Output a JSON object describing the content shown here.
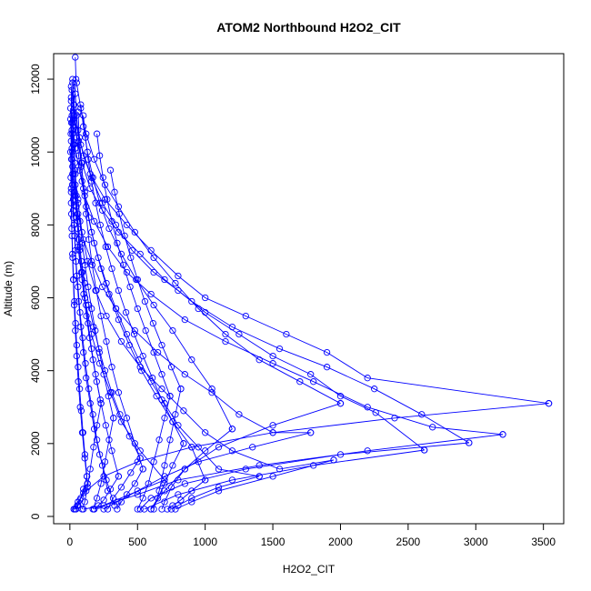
{
  "chart_data": {
    "type": "line",
    "title": "ATOM2 Northbound H2O2_CIT",
    "xlabel": "H2O2_CIT",
    "ylabel": "Altitude (m)",
    "xlim": [
      -120,
      3650
    ],
    "ylim": [
      -200,
      12700
    ],
    "x_ticks": [
      0,
      500,
      1000,
      1500,
      2000,
      2500,
      3000,
      3500
    ],
    "y_ticks": [
      0,
      2000,
      4000,
      6000,
      8000,
      10000,
      12000
    ],
    "x_tick_labels": [
      "0",
      "500",
      "1000",
      "1500",
      "2000",
      "2500",
      "3000",
      "3500"
    ],
    "y_tick_labels": [
      "0",
      "2000",
      "4000",
      "6000",
      "8000",
      "10000",
      "12000"
    ],
    "grid": false,
    "legend": "none",
    "series_color": "#0000ff",
    "marker": "open-circle",
    "series": [
      {
        "x": [
          40,
          45,
          30,
          20,
          15,
          10,
          25,
          60,
          90,
          120,
          160,
          220,
          300,
          380,
          520,
          700,
          180
        ],
        "y": [
          12600,
          12000,
          11300,
          10500,
          9800,
          9000,
          8200,
          7400,
          6500,
          5800,
          5000,
          4200,
          3400,
          2600,
          1800,
          1000,
          200
        ]
      },
      {
        "x": [
          20,
          30,
          80,
          150,
          260,
          420,
          600,
          800,
          1000,
          1300,
          1600,
          1900,
          2200,
          3540
        ],
        "y": [
          11900,
          11000,
          10200,
          9400,
          8700,
          8000,
          7300,
          6600,
          6000,
          5500,
          5000,
          4500,
          3800,
          3100
        ]
      },
      {
        "x": [
          3540,
          2400,
          1500,
          900,
          500,
          250,
          120,
          60,
          30
        ],
        "y": [
          3100,
          2700,
          2300,
          1900,
          1500,
          1100,
          700,
          400,
          200
        ]
      },
      {
        "x": [
          10,
          20,
          40,
          70,
          110,
          180,
          280,
          420,
          600,
          850,
          1150,
          1500,
          1800,
          2200,
          2680,
          3200
        ],
        "y": [
          11400,
          10800,
          10100,
          9500,
          8800,
          8100,
          7400,
          6700,
          6100,
          5400,
          4800,
          4200,
          3700,
          3000,
          2450,
          2250
        ]
      },
      {
        "x": [
          3200,
          2200,
          1400,
          800,
          500,
          250,
          100
        ],
        "y": [
          2250,
          1800,
          1400,
          1000,
          600,
          300,
          200
        ]
      },
      {
        "x": [
          15,
          25,
          50,
          90,
          150,
          240,
          360,
          520,
          700,
          900,
          1200,
          1550,
          1900,
          2250,
          2600,
          2950
        ],
        "y": [
          11700,
          11100,
          10400,
          9700,
          9000,
          8400,
          7800,
          7200,
          6500,
          5900,
          5200,
          4600,
          4100,
          3500,
          2800,
          2020
        ]
      },
      {
        "x": [
          2950,
          2000,
          1300,
          850,
          600,
          520
        ],
        "y": [
          2020,
          1700,
          1300,
          900,
          500,
          200
        ]
      },
      {
        "x": [
          30,
          60,
          100,
          160,
          240,
          340,
          460,
          620,
          800,
          1000,
          1250,
          1500,
          1780,
          2000,
          2260,
          2620
        ],
        "y": [
          11300,
          10600,
          9900,
          9300,
          8600,
          8000,
          7300,
          6700,
          6200,
          5600,
          5000,
          4400,
          3900,
          3300,
          2850,
          1820
        ]
      },
      {
        "x": [
          2620,
          1800,
          1200,
          800,
          550
        ],
        "y": [
          1820,
          1400,
          1000,
          600,
          200
        ]
      },
      {
        "x": [
          5,
          10,
          20,
          35,
          60,
          100,
          160,
          240,
          340,
          480,
          650,
          850,
          1050,
          1250,
          1500,
          1780
        ],
        "y": [
          10900,
          10300,
          9600,
          8900,
          8300,
          7600,
          7000,
          6300,
          5700,
          5100,
          4500,
          3900,
          3400,
          2800,
          2300,
          2300
        ]
      },
      {
        "x": [
          1780,
          1350,
          950,
          700,
          500,
          350,
          250
        ],
        "y": [
          2300,
          1900,
          1500,
          1100,
          700,
          400,
          200
        ]
      },
      {
        "x": [
          50,
          80,
          120,
          180,
          260,
          360,
          480,
          620,
          780,
          950,
          1150,
          1400,
          1700,
          2000
        ],
        "y": [
          11900,
          11200,
          10500,
          9800,
          9100,
          8500,
          7800,
          7100,
          6400,
          5700,
          5000,
          4300,
          3700,
          3100
        ]
      },
      {
        "x": [
          2000,
          1500,
          1100,
          850,
          700,
          600
        ],
        "y": [
          3100,
          2500,
          1900,
          1300,
          700,
          200
        ]
      },
      {
        "x": [
          10,
          15,
          25,
          40,
          60,
          90,
          130,
          190,
          270,
          380,
          520,
          680,
          840,
          1000,
          1200,
          1550,
          1950
        ],
        "y": [
          11800,
          11000,
          10200,
          9400,
          8600,
          7800,
          7000,
          6200,
          5500,
          4800,
          4100,
          3500,
          2900,
          2300,
          1800,
          1300,
          1550
        ]
      },
      {
        "x": [
          1950,
          1500,
          1100,
          900,
          780
        ],
        "y": [
          1550,
          1100,
          700,
          400,
          200
        ]
      },
      {
        "x": [
          80,
          100,
          130,
          170,
          220,
          290,
          380,
          490,
          620,
          760,
          900,
          1050,
          1200
        ],
        "y": [
          11300,
          10700,
          10000,
          9300,
          8600,
          7900,
          7200,
          6500,
          5800,
          5100,
          4300,
          3500,
          2400
        ]
      },
      {
        "x": [
          1200,
          1000,
          850,
          750,
          700,
          680
        ],
        "y": [
          2400,
          1800,
          1300,
          800,
          400,
          200
        ]
      },
      {
        "x": [
          20,
          30,
          45,
          65,
          90,
          120,
          160,
          210,
          270,
          340,
          420,
          510,
          600,
          700,
          800,
          950,
          1100,
          1400
        ],
        "y": [
          12000,
          11300,
          10600,
          9900,
          9200,
          8500,
          7800,
          7100,
          6400,
          5700,
          5000,
          4300,
          3700,
          3100,
          2500,
          1900,
          1300,
          1100
        ]
      },
      {
        "x": [
          1400,
          1100,
          900,
          800,
          750
        ],
        "y": [
          1100,
          800,
          500,
          300,
          200
        ]
      },
      {
        "x": [
          40,
          50,
          65,
          85,
          110,
          140,
          180,
          230,
          290,
          360,
          440,
          530,
          640,
          760,
          900,
          1000
        ],
        "y": [
          11600,
          11000,
          10300,
          9600,
          8900,
          8200,
          7500,
          6800,
          6100,
          5400,
          4700,
          4000,
          3300,
          2600,
          1900,
          1000
        ]
      },
      {
        "x": [
          1000,
          900,
          820,
          760,
          720
        ],
        "y": [
          1000,
          700,
          450,
          300,
          200
        ]
      },
      {
        "x": [
          10,
          12,
          15,
          20,
          25,
          30,
          40,
          50,
          65,
          80,
          100,
          120,
          150,
          180,
          220,
          270,
          330
        ],
        "y": [
          11500,
          10800,
          10100,
          9400,
          8700,
          8000,
          7300,
          6600,
          5900,
          5200,
          4500,
          3800,
          3100,
          2400,
          1700,
          1000,
          300
        ]
      },
      {
        "x": [
          5,
          8,
          12,
          18,
          25,
          35,
          45,
          60,
          75,
          95,
          115,
          140,
          170,
          200,
          240,
          280
        ],
        "y": [
          11200,
          10500,
          9800,
          9100,
          8400,
          7700,
          7000,
          6300,
          5600,
          4900,
          4200,
          3500,
          2800,
          2100,
          1400,
          700
        ]
      },
      {
        "x": [
          60,
          70,
          85,
          100,
          120,
          140,
          165,
          195,
          230,
          270,
          310,
          360,
          420,
          480,
          540
        ],
        "y": [
          11100,
          10400,
          9700,
          9000,
          8300,
          7600,
          6900,
          6200,
          5500,
          4800,
          4100,
          3400,
          2700,
          2000,
          1300
        ]
      },
      {
        "x": [
          540,
          480,
          420,
          380,
          350
        ],
        "y": [
          1300,
          900,
          600,
          400,
          200
        ]
      },
      {
        "x": [
          15,
          20,
          28,
          38,
          50,
          65,
          85,
          110,
          140,
          175,
          215,
          260,
          310,
          370,
          440,
          520
        ],
        "y": [
          10600,
          10000,
          9400,
          8800,
          8200,
          7600,
          7000,
          6400,
          5800,
          5200,
          4600,
          4000,
          3400,
          2800,
          2200,
          1600
        ]
      },
      {
        "x": [
          520,
          450,
          380,
          320,
          280
        ],
        "y": [
          1600,
          1200,
          800,
          500,
          200
        ]
      },
      {
        "x": [
          100,
          115,
          135,
          160,
          190,
          225,
          265,
          310,
          360,
          415,
          475,
          540,
          610,
          680,
          760,
          840
        ],
        "y": [
          11000,
          10400,
          9800,
          9200,
          8600,
          8000,
          7400,
          6800,
          6200,
          5600,
          5000,
          4400,
          3800,
          3200,
          2600,
          2000
        ]
      },
      {
        "x": [
          840,
          760,
          700,
          650,
          600
        ],
        "y": [
          2000,
          1400,
          900,
          500,
          200
        ]
      },
      {
        "x": [
          25,
          30,
          38,
          48,
          60,
          75,
          92,
          112,
          135,
          160,
          190,
          225,
          265,
          310,
          360
        ],
        "y": [
          10900,
          10200,
          9500,
          8800,
          8100,
          7400,
          6700,
          6000,
          5300,
          4600,
          3900,
          3200,
          2500,
          1800,
          1100
        ]
      },
      {
        "x": [
          360,
          300,
          250,
          210,
          180
        ],
        "y": [
          1100,
          750,
          450,
          300,
          200
        ]
      },
      {
        "x": [
          5,
          7,
          10,
          14,
          19,
          25,
          32,
          40,
          50,
          62,
          76,
          92,
          110,
          130
        ],
        "y": [
          10000,
          9300,
          8600,
          7900,
          7200,
          6500,
          5800,
          5100,
          4400,
          3700,
          3000,
          2300,
          1600,
          900
        ]
      },
      {
        "x": [
          130,
          100,
          75,
          55,
          40,
          30
        ],
        "y": [
          900,
          650,
          450,
          300,
          200,
          200
        ]
      },
      {
        "x": [
          200,
          220,
          245,
          275,
          310,
          350,
          395,
          445,
          500,
          560,
          620,
          680,
          740
        ],
        "y": [
          10500,
          9900,
          9300,
          8700,
          8100,
          7500,
          6900,
          6300,
          5700,
          5100,
          4500,
          3900,
          3300
        ]
      },
      {
        "x": [
          740,
          700,
          660,
          620,
          580,
          540,
          500
        ],
        "y": [
          3300,
          2700,
          2100,
          1500,
          900,
          500,
          200
        ]
      },
      {
        "x": [
          35,
          40,
          48,
          58,
          70,
          85,
          102,
          122,
          145,
          170,
          198,
          230
        ],
        "y": [
          9700,
          9100,
          8500,
          7900,
          7300,
          6700,
          6100,
          5500,
          4900,
          4300,
          3700,
          3100
        ]
      },
      {
        "x": [
          230,
          200,
          175,
          150,
          130,
          110,
          90
        ],
        "y": [
          3100,
          2500,
          1900,
          1300,
          800,
          400,
          200
        ]
      },
      {
        "x": [
          10,
          12,
          16,
          21,
          27,
          34,
          42,
          51,
          61,
          72,
          84,
          97,
          111,
          126
        ],
        "y": [
          8900,
          8300,
          7700,
          7100,
          6500,
          5900,
          5300,
          4700,
          4100,
          3500,
          2900,
          2300,
          1700,
          1100
        ]
      },
      {
        "x": [
          126,
          100,
          80,
          60,
          45
        ],
        "y": [
          1100,
          750,
          500,
          300,
          200
        ]
      },
      {
        "x": [
          300,
          330,
          365,
          405,
          450,
          500,
          555,
          615,
          680,
          750,
          820
        ],
        "y": [
          9500,
          8900,
          8300,
          7700,
          7100,
          6500,
          5900,
          5300,
          4700,
          4100,
          3500
        ]
      },
      {
        "x": [
          820,
          780,
          740,
          700,
          660,
          620
        ],
        "y": [
          3500,
          2800,
          2100,
          1400,
          700,
          200
        ]
      },
      {
        "x": [
          60,
          75,
          92,
          112,
          135,
          160,
          188,
          218,
          250,
          285,
          322
        ],
        "y": [
          8700,
          8100,
          7500,
          6900,
          6300,
          5700,
          5100,
          4500,
          3900,
          3300,
          2700
        ]
      },
      {
        "x": [
          322,
          290,
          260,
          230,
          200,
          170
        ],
        "y": [
          2700,
          2100,
          1500,
          900,
          500,
          200
        ]
      }
    ]
  }
}
